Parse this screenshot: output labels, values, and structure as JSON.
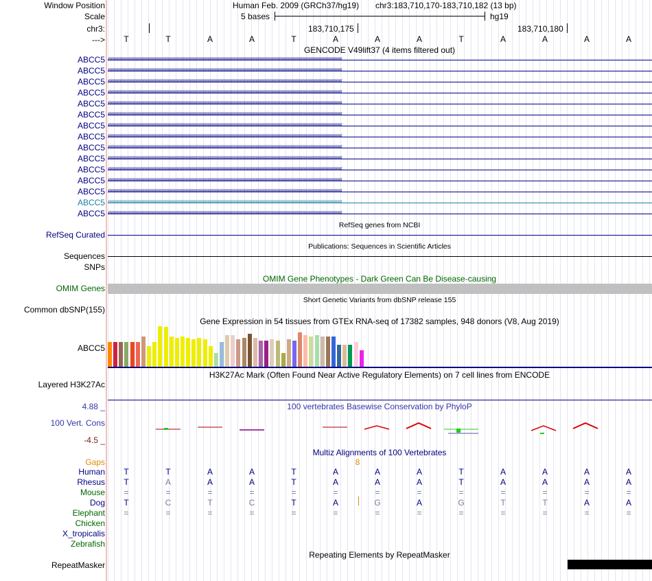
{
  "browser": {
    "labels": {
      "window_position": "Window Position",
      "scale": "Scale",
      "chrom": "chr3:",
      "strand": "--->"
    },
    "header": {
      "assembly": "Human Feb. 2009 (GRCh37/hg19)",
      "position": "chr3:183,710,170-183,710,182 (13 bp)",
      "scale_text": "5 bases",
      "db": "hg19",
      "coord1": "183,710,175",
      "coord2": "183,710,180"
    },
    "sequence": [
      "T",
      "T",
      "A",
      "A",
      "T",
      "A",
      "A",
      "A",
      "T",
      "A",
      "A",
      "A",
      "A"
    ],
    "gencode": {
      "title": "GENCODE V49lift37 (4 items filtered out)",
      "items": [
        "ABCC5",
        "ABCC5",
        "ABCC5",
        "ABCC5",
        "ABCC5",
        "ABCC5",
        "ABCC5",
        "ABCC5",
        "ABCC5",
        "ABCC5",
        "ABCC5",
        "ABCC5",
        "ABCC5",
        "ABCC5",
        "ABCC5"
      ],
      "highlight_index": 13
    },
    "refseq": {
      "title": "RefSeq genes from NCBI",
      "label": "RefSeq Curated"
    },
    "publications": {
      "title": "Publications: Sequences in Scientific Articles",
      "label": "Sequences"
    },
    "snps": {
      "label": "SNPs"
    },
    "omim": {
      "title": "OMIM Gene Phenotypes - Dark Green Can Be Disease-causing",
      "label": "OMIM Genes"
    },
    "dbsnp": {
      "title": "Short Genetic Variants from dbSNP release 155",
      "label": "Common dbSNP(155)"
    },
    "gtex": {
      "title": "Gene Expression in 54 tissues from GTEx RNA-seq of 17382 samples, 948 donors (V8, Aug 2019)",
      "label": "ABCC5"
    },
    "h3k27ac": {
      "title": "H3K27Ac Mark (Often Found Near Active Regulatory Elements) on 7 cell lines from ENCODE",
      "label": "Layered H3K27Ac"
    },
    "conservation": {
      "title": "100 vertebrates Basewise Conservation by PhyloP",
      "label": "100 Vert. Cons",
      "max": "4.88 _",
      "min": "-4.5 _"
    },
    "multiz": {
      "title": "Multiz Alignments of 100 Vertebrates",
      "gaps_label": "Gaps",
      "gap_count": "8",
      "species": [
        {
          "name": "Human",
          "bases": [
            "T",
            "T",
            "A",
            "A",
            "T",
            "A",
            "A",
            "A",
            "T",
            "A",
            "A",
            "A",
            "A"
          ]
        },
        {
          "name": "Rhesus",
          "bases": [
            "T",
            "A",
            "A",
            "A",
            "T",
            "A",
            "A",
            "A",
            "T",
            "A",
            "A",
            "A",
            "A"
          ]
        },
        {
          "name": "Mouse",
          "bases": [
            "=",
            "=",
            "=",
            "=",
            "=",
            "=",
            "=",
            "=",
            "=",
            "=",
            "=",
            "=",
            "="
          ]
        },
        {
          "name": "Dog",
          "bases": [
            "T",
            "C",
            "T",
            "C",
            "T",
            "A",
            "G",
            "A",
            "G",
            "T",
            "T",
            "A",
            "A"
          ]
        },
        {
          "name": "Elephant",
          "bases": [
            "=",
            "=",
            "=",
            "=",
            "=",
            "=",
            "=",
            "=",
            "=",
            "=",
            "=",
            "=",
            "="
          ]
        },
        {
          "name": "Chicken",
          "bases": []
        },
        {
          "name": "X_tropicalis",
          "bases": []
        },
        {
          "name": "Zebrafish",
          "bases": []
        }
      ]
    },
    "repeatmasker": {
      "title": "Repeating Elements by RepeatMasker",
      "label": "RepeatMasker"
    },
    "colors": {
      "navy": "#000080",
      "green": "#006400",
      "omim_bar": "#c0c0c0",
      "gtex_bars": [
        "#ff8800",
        "#cc2244",
        "#996655",
        "#88aa66",
        "#ee4422",
        "#ee6655",
        "#cc9977",
        "#eeee00",
        "#eeee00",
        "#eeee00",
        "#eeee00",
        "#eeee00",
        "#eeee00",
        "#eeee00",
        "#eeee00",
        "#eeee00",
        "#eeee00",
        "#eeee00",
        "#eeee00",
        "#aaddaa",
        "#99bbdd",
        "#ddccaa",
        "#eecccc",
        "#cc9988",
        "#aa8866",
        "#775533",
        "#ddbbaa",
        "#aa66aa",
        "#992288",
        "#ddccbb",
        "#bbbb77",
        "#aaaa44",
        "#ccaa88",
        "#7766ee",
        "#dd8866",
        "#ffbbaa",
        "#ccdd99",
        "#aaddaa",
        "#ccbbaa",
        "#997755",
        "#3366dd",
        "#336699",
        "#ddbb99",
        "#009955",
        "#ffccdd",
        "#ee22ee"
      ]
    }
  }
}
